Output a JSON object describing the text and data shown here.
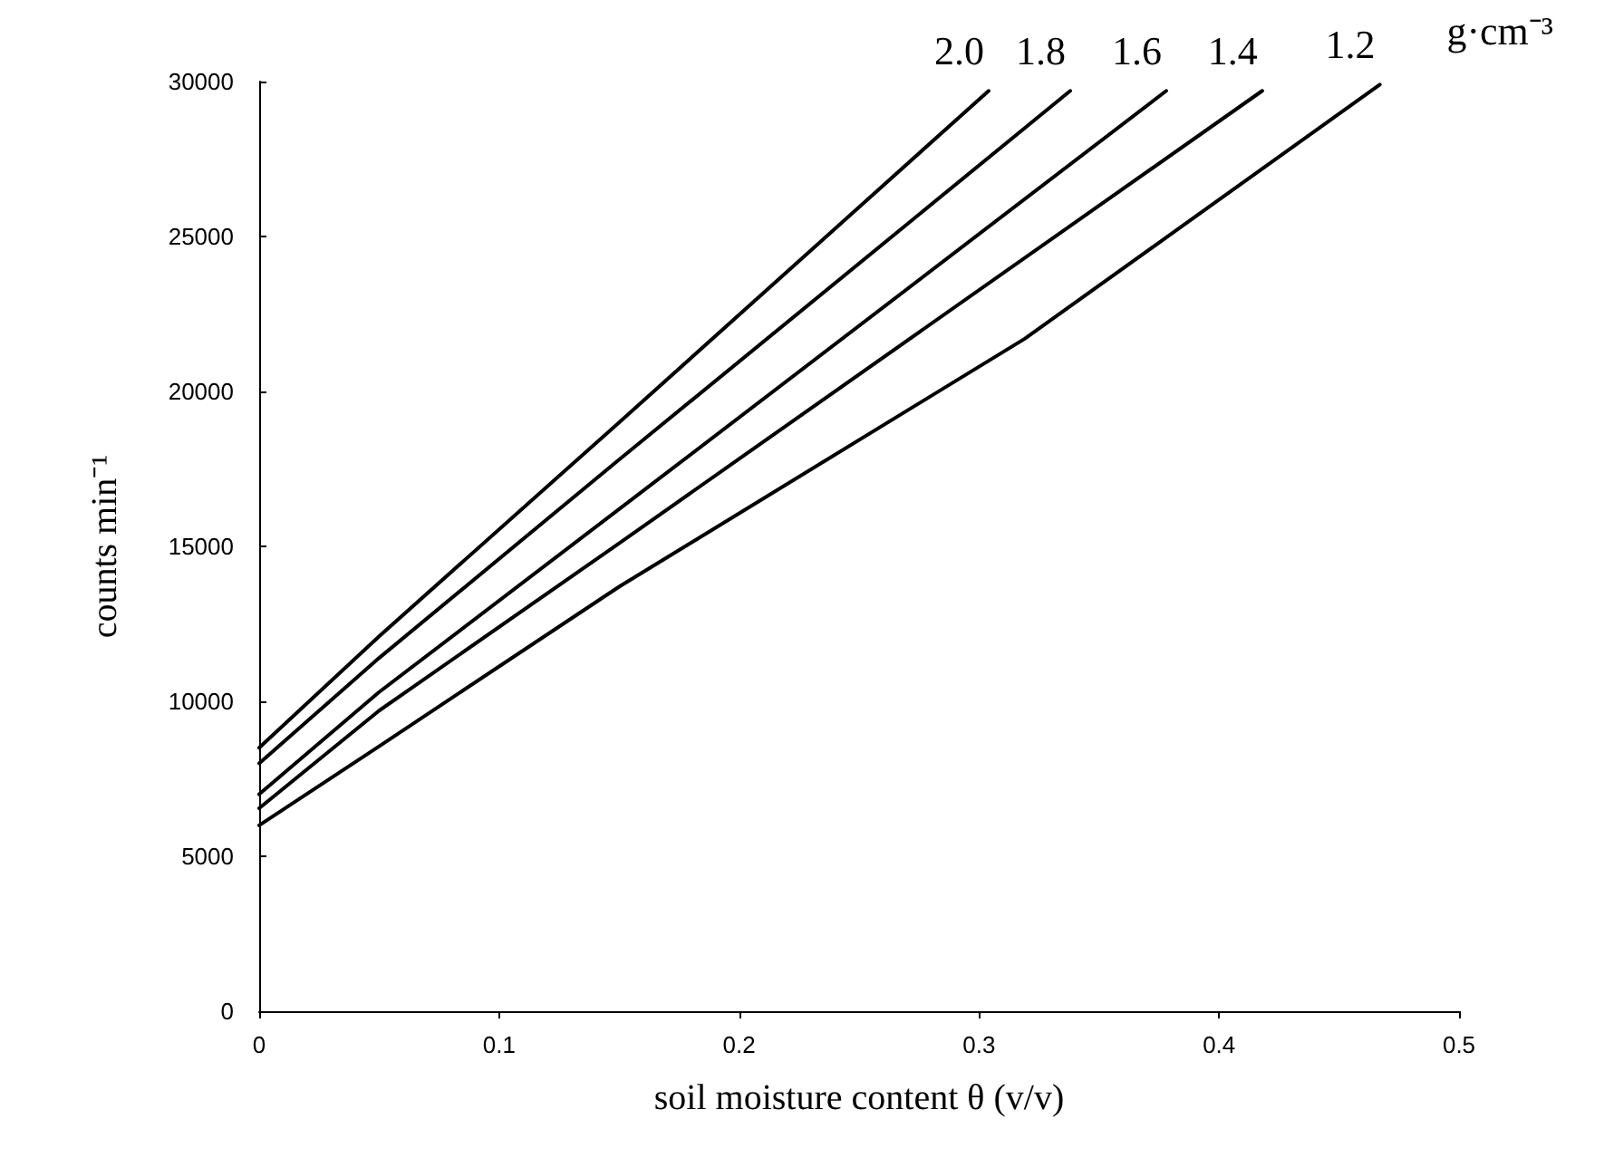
{
  "chart_data": {
    "type": "line",
    "xlabel": "soil moisture content θ (v/v)",
    "ylabel": "counts min⁻¹",
    "annotations": [
      "g·cm⁻³"
    ],
    "xlim": [
      0,
      0.5
    ],
    "xticks": [
      0,
      0.1,
      0.2,
      0.3,
      0.4,
      0.5
    ],
    "ylim": [
      0,
      30000
    ],
    "yticks": [
      0,
      5000,
      10000,
      15000,
      20000,
      25000,
      30000
    ],
    "grid": false,
    "marker": "none",
    "line_style": "solid",
    "series": [
      {
        "name": "2.0",
        "color": "#000000",
        "x": [
          0,
          0.05,
          0.15,
          0.304
        ],
        "values": [
          8500,
          12100,
          19000,
          29700
        ]
      },
      {
        "name": "1.8",
        "color": "#000000",
        "x": [
          0,
          0.05,
          0.15,
          0.338
        ],
        "values": [
          8000,
          11400,
          17800,
          29700
        ]
      },
      {
        "name": "1.6",
        "color": "#000000",
        "x": [
          0,
          0.05,
          0.15,
          0.378
        ],
        "values": [
          7000,
          10300,
          16200,
          29700
        ]
      },
      {
        "name": "1.4",
        "color": "#000000",
        "x": [
          0,
          0.05,
          0.15,
          0.418
        ],
        "values": [
          6550,
          9700,
          15100,
          29700
        ]
      },
      {
        "name": "1.2",
        "color": "#000000",
        "x": [
          0,
          0.05,
          0.15,
          0.319,
          0.467
        ],
        "values": [
          6000,
          8550,
          13700,
          21700,
          29900
        ]
      }
    ]
  }
}
